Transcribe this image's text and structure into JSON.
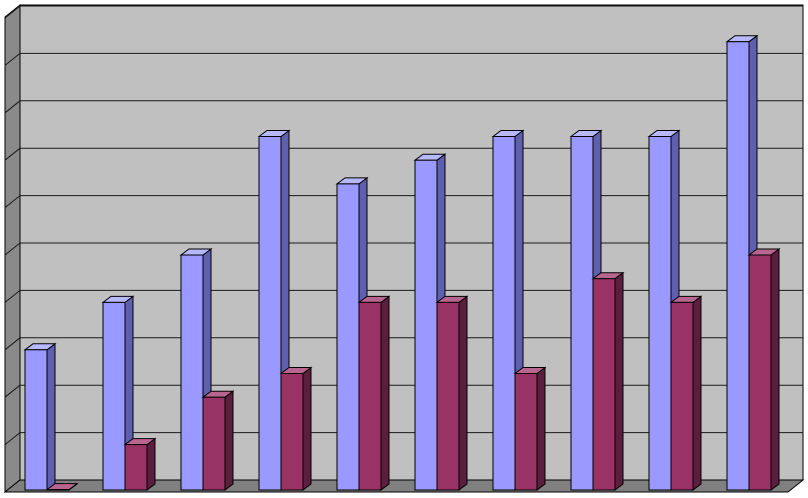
{
  "chart_data": {
    "type": "bar",
    "categories": [
      "",
      "",
      "",
      "",
      "",
      "",
      "",
      "",
      "",
      ""
    ],
    "series": [
      {
        "values": [
          3.0,
          4.0,
          5.0,
          7.5,
          6.5,
          7.0,
          7.5,
          7.5,
          7.5,
          9.5
        ]
      },
      {
        "values": [
          0.05,
          1.0,
          2.0,
          2.5,
          4.0,
          4.0,
          2.5,
          4.5,
          4.0,
          5.0
        ]
      }
    ],
    "ylim": [
      0,
      10
    ],
    "grid": true,
    "legend": "none",
    "colors": {
      "wall": "#c0c0c0",
      "floor": "#808080",
      "side_wall": "#8a8a8a",
      "gridline": "#1a1a1a",
      "series_fronts": [
        "#9999ff",
        "#993366"
      ],
      "series_sides": [
        "#5f5fb0",
        "#5c1e3d"
      ],
      "series_tops": [
        "#b8b8ff",
        "#b86690"
      ]
    }
  }
}
